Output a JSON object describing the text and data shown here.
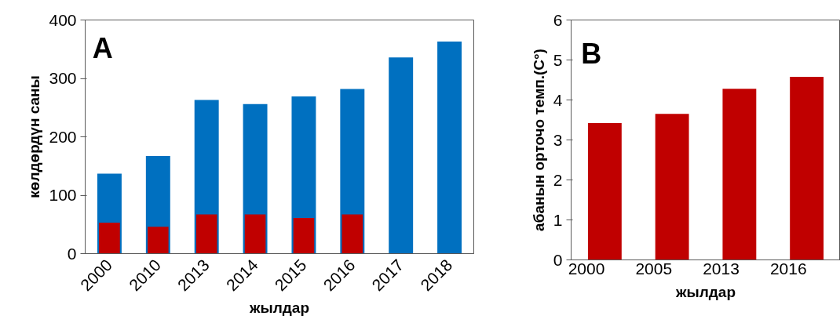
{
  "chart_data": [
    {
      "type": "bar",
      "categories": [
        "2000",
        "2010",
        "2013",
        "2014",
        "2015",
        "2016",
        "2017",
        "2018"
      ],
      "series": [
        {
          "color": "#0070c0",
          "values": [
            137,
            167,
            263,
            256,
            269,
            282,
            336,
            363
          ]
        },
        {
          "color": "#c00000",
          "values": [
            53,
            46,
            67,
            67,
            61,
            67,
            null,
            null
          ]
        }
      ],
      "ylim": [
        0,
        400
      ],
      "yticks": [
        0,
        100,
        200,
        300,
        400
      ],
      "xlabel": "жылдар",
      "ylabel": "көлдөрдүн саны",
      "annotations": [
        "A"
      ]
    },
    {
      "type": "bar",
      "categories": [
        "2000",
        "2005",
        "2013",
        "2016"
      ],
      "series": [
        {
          "color": "#c00000",
          "values": [
            3.42,
            3.65,
            4.28,
            4.58
          ]
        }
      ],
      "ylim": [
        0,
        6
      ],
      "yticks": [
        0,
        1,
        2,
        3,
        4,
        5,
        6
      ],
      "xlabel": "жылдар",
      "ylabel": "абанын орточо темп.(C°)",
      "annotations": [
        "B"
      ]
    }
  ]
}
